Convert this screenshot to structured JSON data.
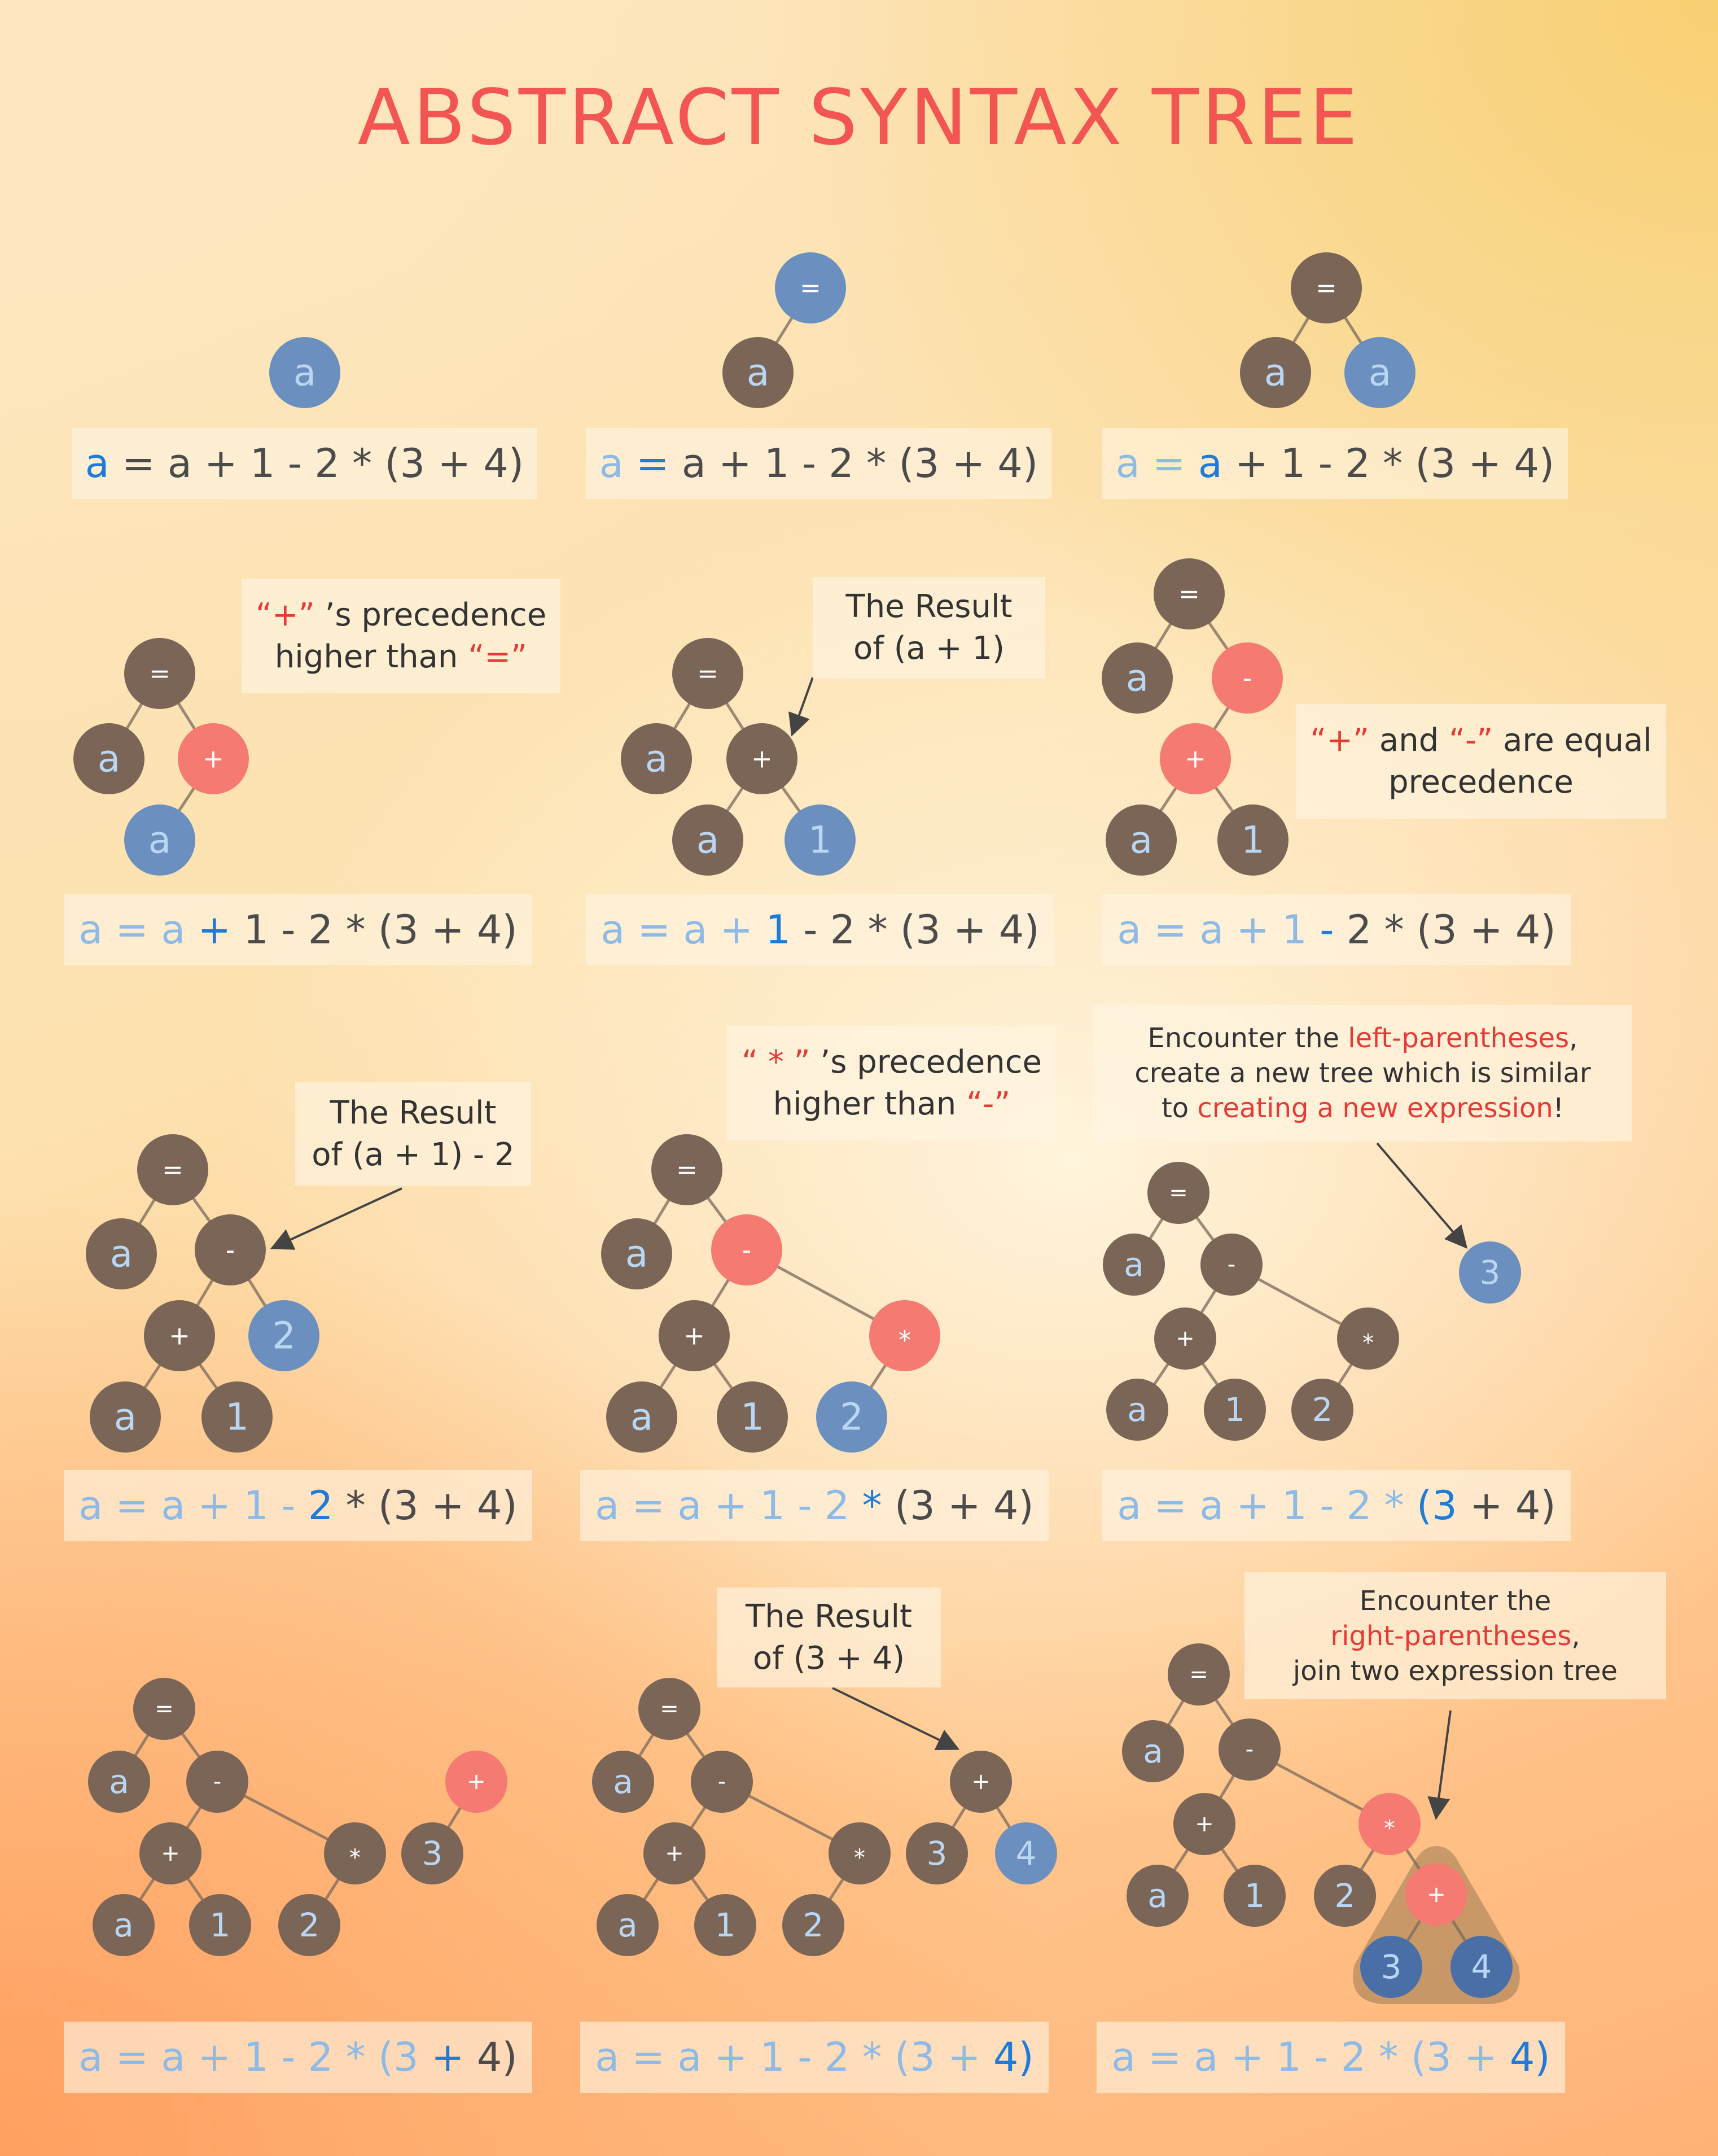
{
  "title": "ABSTRACT SYNTAX TREE",
  "colors": {
    "brown_node": "#7a6556",
    "blue_node": "#6b8fbe",
    "red_node": "#f47a72",
    "title": "#f25552",
    "token_done": "#8ebae6",
    "token_current": "#1f7bd6",
    "token_rest": "#4b4b4b",
    "note_highlight": "#e63b35"
  },
  "expression_tokens": [
    "a",
    "=",
    "a",
    "+",
    "1",
    "-",
    "2",
    "*",
    "(3",
    "+",
    "4)"
  ],
  "steps": [
    {
      "current_token": 0
    },
    {
      "current_token": 1
    },
    {
      "current_token": 2
    },
    {
      "current_token": 3
    },
    {
      "current_token": 4
    },
    {
      "current_token": 5
    },
    {
      "current_token": 6
    },
    {
      "current_token": 7
    },
    {
      "current_token": 8
    },
    {
      "current_token": 9
    },
    {
      "current_token": 10
    },
    {
      "current_token": 10
    }
  ],
  "notes": {
    "n4": {
      "lines": [
        [
          {
            "t": "“+”",
            "red": true
          },
          {
            "t": " ’s precedence"
          }
        ],
        [
          {
            "t": "higher than "
          },
          {
            "t": "“=”",
            "red": true
          }
        ]
      ]
    },
    "n5": {
      "lines": [
        [
          {
            "t": "The Result"
          }
        ],
        [
          {
            "t": "of (a + 1)"
          }
        ]
      ]
    },
    "n6": {
      "lines": [
        [
          {
            "t": "“+”",
            "red": true
          },
          {
            "t": " and "
          },
          {
            "t": "“-”",
            "red": true
          },
          {
            "t": " are equal"
          }
        ],
        [
          {
            "t": "precedence"
          }
        ]
      ]
    },
    "n7": {
      "lines": [
        [
          {
            "t": "The Result"
          }
        ],
        [
          {
            "t": "of (a + 1) - 2"
          }
        ]
      ]
    },
    "n8": {
      "lines": [
        [
          {
            "t": "“ * ”",
            "red": true
          },
          {
            "t": " ’s precedence"
          }
        ],
        [
          {
            "t": "higher than "
          },
          {
            "t": "“-”",
            "red": true
          }
        ]
      ]
    },
    "n9": {
      "lines": [
        [
          {
            "t": "Encounter the "
          },
          {
            "t": "left-parentheses",
            "red": true
          },
          {
            "t": ","
          }
        ],
        [
          {
            "t": "create a new tree which is similar"
          }
        ],
        [
          {
            "t": "to "
          },
          {
            "t": "creating a new expression",
            "red": true
          },
          {
            "t": "!"
          }
        ]
      ]
    },
    "n11": {
      "lines": [
        [
          {
            "t": "The Result"
          }
        ],
        [
          {
            "t": "of (3 + 4)"
          }
        ]
      ]
    },
    "n12": {
      "lines": [
        [
          {
            "t": "Encounter the"
          }
        ],
        [
          {
            "t": "right-parentheses",
            "red": true
          },
          {
            "t": ","
          }
        ],
        [
          {
            "t": "join two expression tree"
          }
        ]
      ]
    }
  },
  "trees": [
    {
      "nodes": [
        {
          "id": "a",
          "label": "a",
          "color": "blue"
        }
      ],
      "edges": []
    },
    {
      "nodes": [
        {
          "id": "eq",
          "label": "=",
          "color": "blue"
        },
        {
          "id": "a1",
          "label": "a",
          "color": "brown"
        }
      ],
      "edges": [
        [
          "eq",
          "a1"
        ]
      ]
    },
    {
      "nodes": [
        {
          "id": "eq",
          "label": "=",
          "color": "brown"
        },
        {
          "id": "a1",
          "label": "a",
          "color": "brown"
        },
        {
          "id": "a2",
          "label": "a",
          "color": "blue"
        }
      ],
      "edges": [
        [
          "eq",
          "a1"
        ],
        [
          "eq",
          "a2"
        ]
      ]
    },
    {
      "nodes": [
        {
          "id": "eq",
          "label": "=",
          "color": "brown"
        },
        {
          "id": "a1",
          "label": "a",
          "color": "brown"
        },
        {
          "id": "plus",
          "label": "+",
          "color": "red"
        },
        {
          "id": "a2",
          "label": "a",
          "color": "blue"
        }
      ],
      "edges": [
        [
          "eq",
          "a1"
        ],
        [
          "eq",
          "plus"
        ],
        [
          "plus",
          "a2"
        ]
      ]
    },
    {
      "nodes": [
        {
          "id": "eq",
          "label": "=",
          "color": "brown"
        },
        {
          "id": "a1",
          "label": "a",
          "color": "brown"
        },
        {
          "id": "plus",
          "label": "+",
          "color": "brown"
        },
        {
          "id": "a2",
          "label": "a",
          "color": "brown"
        },
        {
          "id": "one",
          "label": "1",
          "color": "blue"
        }
      ],
      "edges": [
        [
          "eq",
          "a1"
        ],
        [
          "eq",
          "plus"
        ],
        [
          "plus",
          "a2"
        ],
        [
          "plus",
          "one"
        ]
      ]
    },
    {
      "nodes": [
        {
          "id": "eq",
          "label": "=",
          "color": "brown"
        },
        {
          "id": "a1",
          "label": "a",
          "color": "brown"
        },
        {
          "id": "minus",
          "label": "-",
          "color": "red"
        },
        {
          "id": "plus",
          "label": "+",
          "color": "red"
        },
        {
          "id": "a2",
          "label": "a",
          "color": "brown"
        },
        {
          "id": "one",
          "label": "1",
          "color": "brown"
        }
      ],
      "edges": [
        [
          "eq",
          "a1"
        ],
        [
          "eq",
          "minus"
        ],
        [
          "minus",
          "plus"
        ],
        [
          "plus",
          "a2"
        ],
        [
          "plus",
          "one"
        ]
      ]
    },
    {
      "nodes": [
        {
          "id": "eq",
          "label": "=",
          "color": "brown"
        },
        {
          "id": "a1",
          "label": "a",
          "color": "brown"
        },
        {
          "id": "minus",
          "label": "-",
          "color": "brown"
        },
        {
          "id": "plus",
          "label": "+",
          "color": "brown"
        },
        {
          "id": "two",
          "label": "2",
          "color": "blue"
        },
        {
          "id": "a2",
          "label": "a",
          "color": "brown"
        },
        {
          "id": "one",
          "label": "1",
          "color": "brown"
        }
      ],
      "edges": [
        [
          "eq",
          "a1"
        ],
        [
          "eq",
          "minus"
        ],
        [
          "minus",
          "plus"
        ],
        [
          "minus",
          "two"
        ],
        [
          "plus",
          "a2"
        ],
        [
          "plus",
          "one"
        ]
      ]
    },
    {
      "nodes": [
        {
          "id": "eq",
          "label": "=",
          "color": "brown"
        },
        {
          "id": "a1",
          "label": "a",
          "color": "brown"
        },
        {
          "id": "minus",
          "label": "-",
          "color": "red"
        },
        {
          "id": "plus",
          "label": "+",
          "color": "brown"
        },
        {
          "id": "star",
          "label": "*",
          "color": "red"
        },
        {
          "id": "a2",
          "label": "a",
          "color": "brown"
        },
        {
          "id": "one",
          "label": "1",
          "color": "brown"
        },
        {
          "id": "two",
          "label": "2",
          "color": "blue"
        }
      ],
      "edges": [
        [
          "eq",
          "a1"
        ],
        [
          "eq",
          "minus"
        ],
        [
          "minus",
          "plus"
        ],
        [
          "minus",
          "star"
        ],
        [
          "plus",
          "a2"
        ],
        [
          "plus",
          "one"
        ],
        [
          "star",
          "two"
        ]
      ]
    },
    {
      "nodes": [
        {
          "id": "eq",
          "label": "=",
          "color": "brown"
        },
        {
          "id": "a1",
          "label": "a",
          "color": "brown"
        },
        {
          "id": "minus",
          "label": "-",
          "color": "brown"
        },
        {
          "id": "plus",
          "label": "+",
          "color": "brown"
        },
        {
          "id": "star",
          "label": "*",
          "color": "brown"
        },
        {
          "id": "a2",
          "label": "a",
          "color": "brown"
        },
        {
          "id": "one",
          "label": "1",
          "color": "brown"
        },
        {
          "id": "two",
          "label": "2",
          "color": "brown"
        },
        {
          "id": "three",
          "label": "3",
          "color": "blue"
        }
      ],
      "edges": [
        [
          "eq",
          "a1"
        ],
        [
          "eq",
          "minus"
        ],
        [
          "minus",
          "plus"
        ],
        [
          "minus",
          "star"
        ],
        [
          "plus",
          "a2"
        ],
        [
          "plus",
          "one"
        ],
        [
          "star",
          "two"
        ]
      ]
    },
    {
      "nodes": [
        {
          "id": "eq",
          "label": "=",
          "color": "brown"
        },
        {
          "id": "a1",
          "label": "a",
          "color": "brown"
        },
        {
          "id": "minus",
          "label": "-",
          "color": "brown"
        },
        {
          "id": "plus",
          "label": "+",
          "color": "brown"
        },
        {
          "id": "star",
          "label": "*",
          "color": "brown"
        },
        {
          "id": "a2",
          "label": "a",
          "color": "brown"
        },
        {
          "id": "one",
          "label": "1",
          "color": "brown"
        },
        {
          "id": "two",
          "label": "2",
          "color": "brown"
        },
        {
          "id": "plus2",
          "label": "+",
          "color": "red"
        },
        {
          "id": "three",
          "label": "3",
          "color": "brown"
        }
      ],
      "edges": [
        [
          "eq",
          "a1"
        ],
        [
          "eq",
          "minus"
        ],
        [
          "minus",
          "plus"
        ],
        [
          "minus",
          "star"
        ],
        [
          "plus",
          "a2"
        ],
        [
          "plus",
          "one"
        ],
        [
          "star",
          "two"
        ],
        [
          "plus2",
          "three"
        ]
      ]
    },
    {
      "nodes": [
        {
          "id": "eq",
          "label": "=",
          "color": "brown"
        },
        {
          "id": "a1",
          "label": "a",
          "color": "brown"
        },
        {
          "id": "minus",
          "label": "-",
          "color": "brown"
        },
        {
          "id": "plus",
          "label": "+",
          "color": "brown"
        },
        {
          "id": "star",
          "label": "*",
          "color": "brown"
        },
        {
          "id": "a2",
          "label": "a",
          "color": "brown"
        },
        {
          "id": "one",
          "label": "1",
          "color": "brown"
        },
        {
          "id": "two",
          "label": "2",
          "color": "brown"
        },
        {
          "id": "plus2",
          "label": "+",
          "color": "brown"
        },
        {
          "id": "three",
          "label": "3",
          "color": "brown"
        },
        {
          "id": "four",
          "label": "4",
          "color": "blue"
        }
      ],
      "edges": [
        [
          "eq",
          "a1"
        ],
        [
          "eq",
          "minus"
        ],
        [
          "minus",
          "plus"
        ],
        [
          "minus",
          "star"
        ],
        [
          "plus",
          "a2"
        ],
        [
          "plus",
          "one"
        ],
        [
          "star",
          "two"
        ],
        [
          "plus2",
          "three"
        ],
        [
          "plus2",
          "four"
        ]
      ]
    },
    {
      "nodes": [
        {
          "id": "eq",
          "label": "=",
          "color": "brown"
        },
        {
          "id": "a1",
          "label": "a",
          "color": "brown"
        },
        {
          "id": "minus",
          "label": "-",
          "color": "brown"
        },
        {
          "id": "plus",
          "label": "+",
          "color": "brown"
        },
        {
          "id": "star",
          "label": "*",
          "color": "red"
        },
        {
          "id": "a2",
          "label": "a",
          "color": "brown"
        },
        {
          "id": "one",
          "label": "1",
          "color": "brown"
        },
        {
          "id": "two",
          "label": "2",
          "color": "brown"
        },
        {
          "id": "plus2",
          "label": "+",
          "color": "red"
        },
        {
          "id": "three",
          "label": "3",
          "color": "darkblue"
        },
        {
          "id": "four",
          "label": "4",
          "color": "darkblue"
        }
      ],
      "edges": [
        [
          "eq",
          "a1"
        ],
        [
          "eq",
          "minus"
        ],
        [
          "minus",
          "plus"
        ],
        [
          "minus",
          "star"
        ],
        [
          "plus",
          "a2"
        ],
        [
          "plus",
          "one"
        ],
        [
          "star",
          "two"
        ],
        [
          "star",
          "plus2"
        ],
        [
          "plus2",
          "three"
        ],
        [
          "plus2",
          "four"
        ]
      ]
    }
  ]
}
